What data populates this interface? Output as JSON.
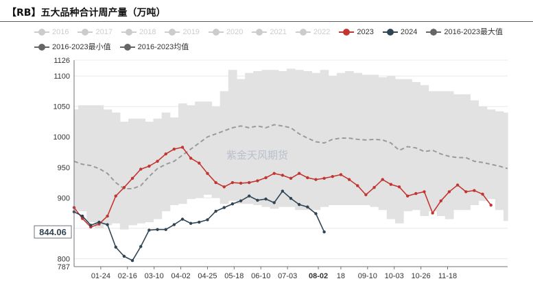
{
  "chart_data": {
    "type": "line",
    "title": "【RB】五大品种合计周产量（万吨）",
    "watermark": "紫金天风期货",
    "y_axis": {
      "min": 787,
      "max": 1126,
      "ticks": [
        787,
        800,
        850,
        900,
        950,
        1000,
        1050,
        1100,
        1126
      ],
      "pointer_value": "844.06"
    },
    "x_axis": {
      "domain_index": [
        0,
        52
      ],
      "ticks": [
        {
          "label": "01-24",
          "at": 3.2,
          "highlight": false
        },
        {
          "label": "02-16",
          "at": 6.4,
          "highlight": false
        },
        {
          "label": "03-10",
          "at": 9.6,
          "highlight": false
        },
        {
          "label": "04-02",
          "at": 12.8,
          "highlight": false
        },
        {
          "label": "04-25",
          "at": 16.0,
          "highlight": false
        },
        {
          "label": "05-18",
          "at": 19.2,
          "highlight": false
        },
        {
          "label": "06-10",
          "at": 22.4,
          "highlight": false
        },
        {
          "label": "07-03",
          "at": 25.6,
          "highlight": false
        },
        {
          "label": "08-02",
          "at": 29.3,
          "highlight": true
        },
        {
          "label": "18",
          "at": 32.0,
          "highlight": false
        },
        {
          "label": "09-10",
          "at": 35.2,
          "highlight": false
        },
        {
          "label": "10-03",
          "at": 38.4,
          "highlight": false
        },
        {
          "label": "10-26",
          "at": 41.6,
          "highlight": false
        },
        {
          "label": "11-18",
          "at": 44.8,
          "highlight": false
        }
      ]
    },
    "legend": [
      {
        "name": "2016",
        "color": "#cccccc",
        "active": false
      },
      {
        "name": "2017",
        "color": "#cccccc",
        "active": false
      },
      {
        "name": "2018",
        "color": "#cccccc",
        "active": false
      },
      {
        "name": "2019",
        "color": "#cccccc",
        "active": false
      },
      {
        "name": "2020",
        "color": "#cccccc",
        "active": false
      },
      {
        "name": "2021",
        "color": "#cccccc",
        "active": false
      },
      {
        "name": "2022",
        "color": "#cccccc",
        "active": false
      },
      {
        "name": "2023",
        "color": "#c23531",
        "active": true
      },
      {
        "name": "2024",
        "color": "#2f4554",
        "active": true
      },
      {
        "name": "2016-2023最大值",
        "color": "#666666",
        "active": true
      },
      {
        "name": "2016-2023最小值",
        "color": "#666666",
        "active": true
      },
      {
        "name": "2016-2023均值",
        "color": "#666666",
        "active": true
      }
    ],
    "colors": {
      "band": "#e2e2e2",
      "avg": "#9a9a9a",
      "grid": "#e8e8e8",
      "axis": "#6e7079"
    },
    "series": [
      {
        "name": "2016-2023最大值",
        "values": [
          1045,
          1052,
          1052,
          1052,
          1045,
          1040,
          1025,
          1030,
          1030,
          1025,
          1030,
          1040,
          1032,
          1055,
          1052,
          1058,
          1058,
          1050,
          1075,
          1110,
          1095,
          1105,
          1108,
          1110,
          1110,
          1108,
          1112,
          1110,
          1108,
          1105,
          1110,
          1100,
          1105,
          1108,
          1105,
          1102,
          1102,
          1098,
          1100,
          1095,
          1095,
          1090,
          1085,
          1075,
          1075,
          1075,
          1070,
          1070,
          1060,
          1050,
          1045,
          1042,
          1040
        ]
      },
      {
        "name": "2016-2023最小值",
        "values": [
          880,
          878,
          860,
          850,
          855,
          858,
          848,
          855,
          858,
          860,
          865,
          878,
          888,
          890,
          898,
          900,
          905,
          900,
          890,
          895,
          890,
          890,
          888,
          885,
          882,
          885,
          885,
          880,
          880,
          880,
          885,
          888,
          888,
          888,
          888,
          888,
          885,
          880,
          865,
          858,
          878,
          880,
          870,
          878,
          870,
          865,
          880,
          880,
          888,
          895,
          898,
          880,
          862
        ]
      },
      {
        "name": "2016-2023均值",
        "values": [
          960,
          955,
          953,
          948,
          940,
          925,
          915,
          915,
          920,
          935,
          948,
          955,
          960,
          970,
          980,
          990,
          1000,
          1005,
          1010,
          1015,
          1018,
          1015,
          1018,
          1015,
          1020,
          1018,
          1015,
          1005,
          998,
          992,
          990,
          996,
          998,
          998,
          996,
          995,
          996,
          995,
          990,
          978,
          984,
          982,
          976,
          978,
          972,
          968,
          966,
          966,
          960,
          958,
          955,
          952,
          948
        ]
      },
      {
        "name": "2023",
        "values": [
          884,
          866,
          852,
          857,
          870,
          903,
          917,
          932,
          947,
          952,
          960,
          972,
          980,
          983,
          965,
          957,
          940,
          925,
          918,
          925,
          924,
          925,
          928,
          933,
          940,
          937,
          932,
          940,
          933,
          930,
          932,
          935,
          938,
          930,
          920,
          905,
          917,
          930,
          922,
          918,
          903,
          907,
          910,
          875,
          895,
          910,
          921,
          910,
          912,
          906,
          888
        ]
      },
      {
        "name": "2024",
        "values": [
          877,
          870,
          855,
          860,
          856,
          819,
          804,
          797,
          820,
          847,
          848,
          848,
          856,
          865,
          858,
          860,
          864,
          878,
          884,
          890,
          895,
          903,
          896,
          898,
          892,
          911,
          899,
          889,
          885,
          874,
          844
        ]
      }
    ]
  }
}
